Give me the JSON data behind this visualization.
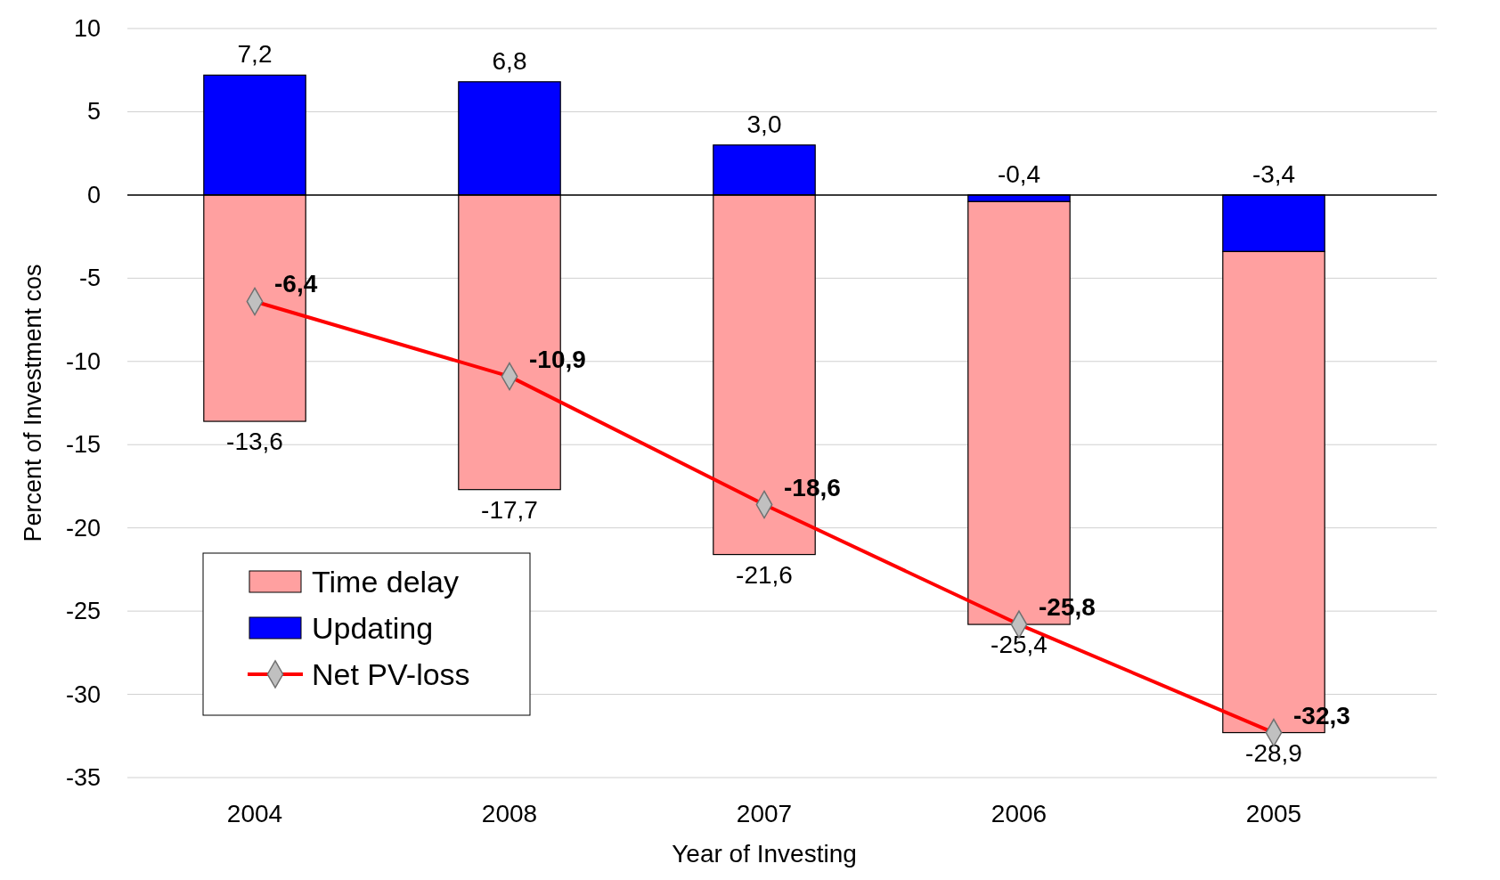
{
  "chart_data": {
    "type": "bar",
    "stacked": true,
    "xlabel": "Year of Investing",
    "ylabel": "Percent of Investment cos",
    "categories": [
      "2004",
      "2008",
      "2007",
      "2006",
      "2005"
    ],
    "series": [
      {
        "name": "Updating",
        "color": "#0000ff",
        "values": [
          7.2,
          6.8,
          3.0,
          -0.4,
          -3.4
        ],
        "value_labels": [
          "7,2",
          "6,8",
          "3,0",
          "-0,4",
          "-3,4"
        ]
      },
      {
        "name": "Time delay",
        "color": "#ffa0a0",
        "values": [
          -13.6,
          -17.7,
          -21.6,
          -25.4,
          -28.9
        ],
        "value_labels": [
          "-13,6",
          "-17,7",
          "-21,6",
          "-25,4",
          "-28,9"
        ]
      },
      {
        "name": "Net PV-loss",
        "type": "line",
        "color": "#ff0000",
        "values": [
          -6.4,
          -10.9,
          -18.6,
          -25.8,
          -32.3
        ],
        "value_labels": [
          "-6,4",
          "-10,9",
          "-18,6",
          "-25,8",
          "-32,3"
        ]
      }
    ],
    "ylim": [
      -35,
      10
    ],
    "yticks": [
      -35,
      -30,
      -25,
      -20,
      -15,
      -10,
      -5,
      0,
      5,
      10
    ],
    "grid": "y",
    "legend": "bottom left",
    "marker": "diamond"
  }
}
